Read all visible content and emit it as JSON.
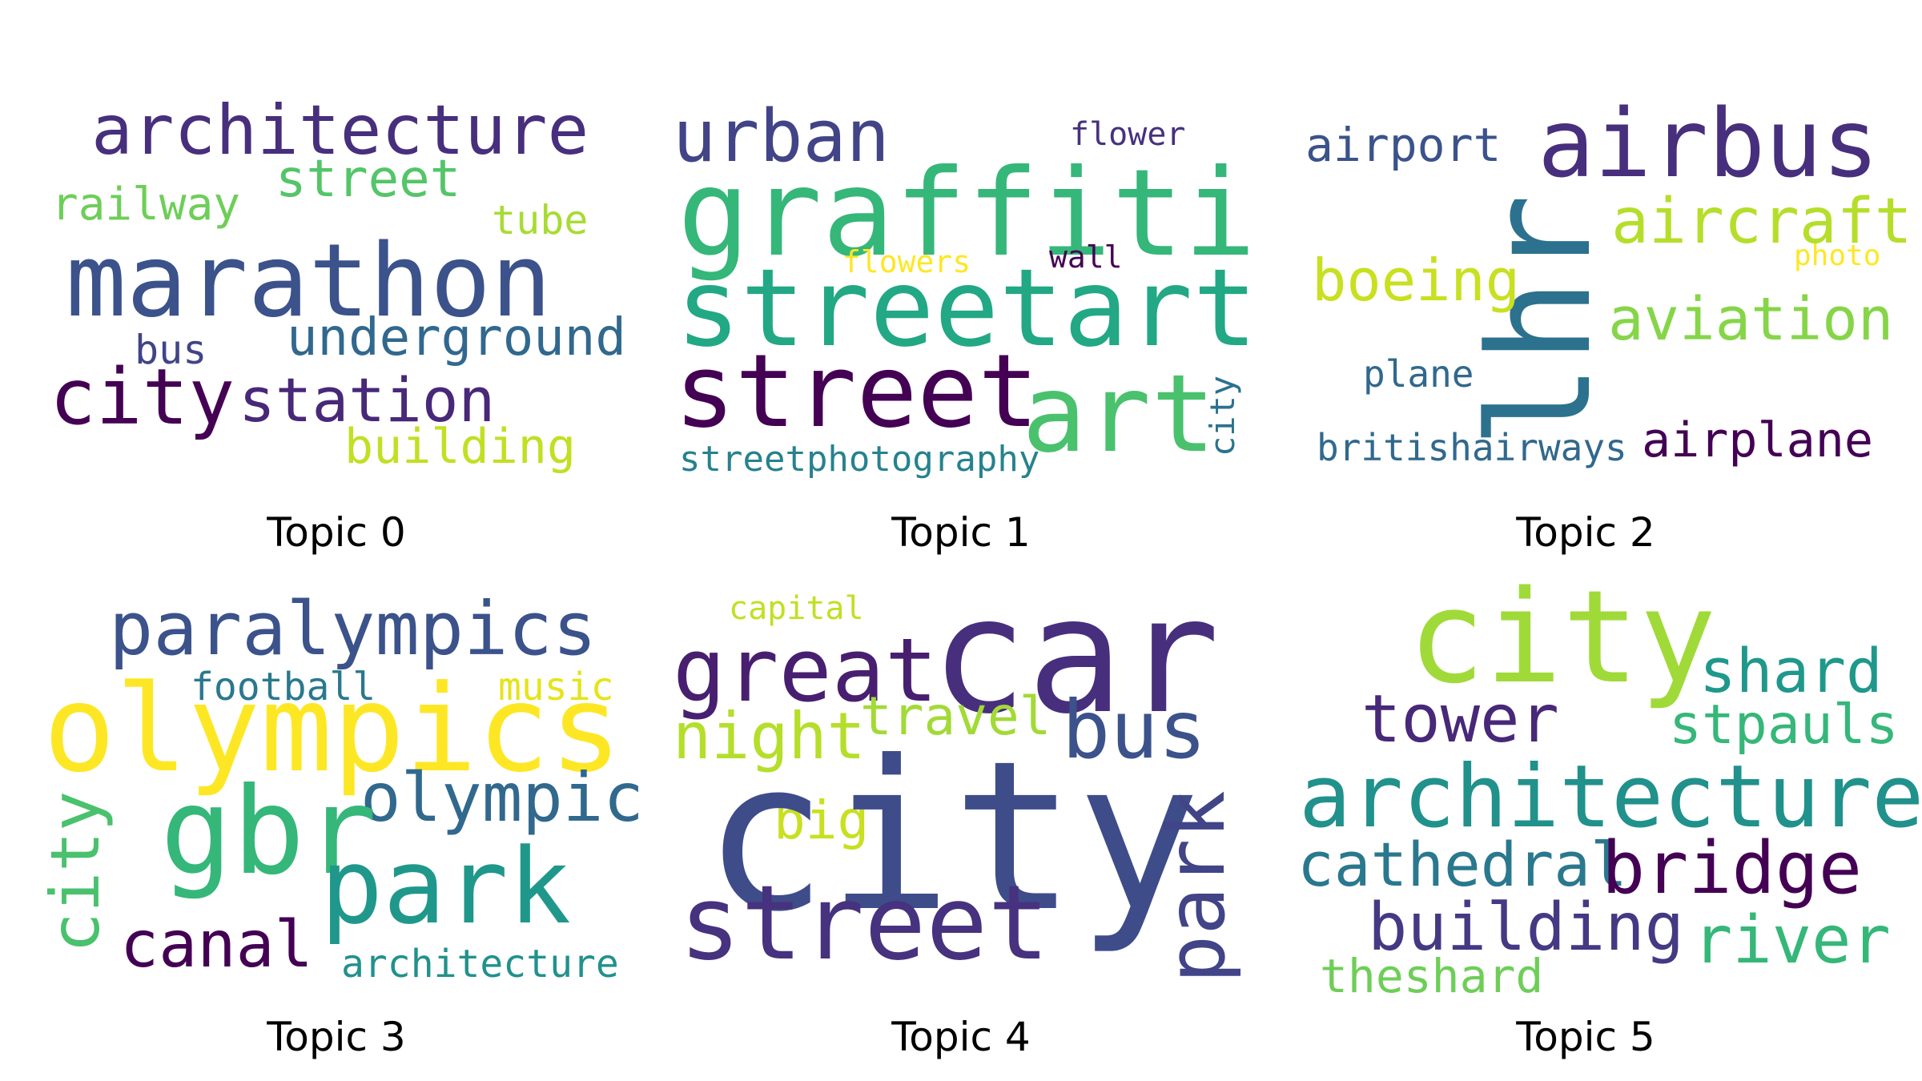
{
  "topics": [
    {
      "caption": "Topic 0",
      "words": [
        {
          "text": "architecture",
          "color": "#472f7d"
        },
        {
          "text": "street",
          "color": "#54c568"
        },
        {
          "text": "railway",
          "color": "#6ece58"
        },
        {
          "text": "tube",
          "color": "#a8db34"
        },
        {
          "text": "marathon",
          "color": "#3b528b"
        },
        {
          "text": "underground",
          "color": "#31688e"
        },
        {
          "text": "bus",
          "color": "#414487"
        },
        {
          "text": "city",
          "color": "#440154"
        },
        {
          "text": "station",
          "color": "#482878"
        },
        {
          "text": "building",
          "color": "#c2df23"
        }
      ]
    },
    {
      "caption": "Topic 1",
      "words": [
        {
          "text": "urban",
          "color": "#414487"
        },
        {
          "text": "flower",
          "color": "#46327e"
        },
        {
          "text": "graffiti",
          "color": "#35b779"
        },
        {
          "text": "flowers",
          "color": "#fde725"
        },
        {
          "text": "wall",
          "color": "#440154"
        },
        {
          "text": "streetart",
          "color": "#22a884"
        },
        {
          "text": "street",
          "color": "#440154"
        },
        {
          "text": "art",
          "color": "#4ac16d"
        },
        {
          "text": "city",
          "color": "#2c728e"
        },
        {
          "text": "streetphotography",
          "color": "#26828e"
        }
      ]
    },
    {
      "caption": "Topic 2",
      "words": [
        {
          "text": "airport",
          "color": "#3b528b"
        },
        {
          "text": "airbus",
          "color": "#472f7d"
        },
        {
          "text": "lhr",
          "color": "#2c728e"
        },
        {
          "text": "aircraft",
          "color": "#b5de2b"
        },
        {
          "text": "photo",
          "color": "#fde725"
        },
        {
          "text": "boeing",
          "color": "#c8e020"
        },
        {
          "text": "aviation",
          "color": "#86d549"
        },
        {
          "text": "plane",
          "color": "#31688e"
        },
        {
          "text": "airplane",
          "color": "#440154"
        },
        {
          "text": "britishairways",
          "color": "#31688e"
        }
      ]
    },
    {
      "caption": "Topic 3",
      "words": [
        {
          "text": "paralympics",
          "color": "#3b528b"
        },
        {
          "text": "football",
          "color": "#2a788e"
        },
        {
          "text": "music",
          "color": "#e5e419"
        },
        {
          "text": "olympics",
          "color": "#fde725"
        },
        {
          "text": "olympic",
          "color": "#31688e"
        },
        {
          "text": "city",
          "color": "#4ac16d"
        },
        {
          "text": "gbr",
          "color": "#35b779"
        },
        {
          "text": "park",
          "color": "#1f988b"
        },
        {
          "text": "canal",
          "color": "#440154"
        },
        {
          "text": "architecture",
          "color": "#21918c"
        }
      ]
    },
    {
      "caption": "Topic 4",
      "words": [
        {
          "text": "capital",
          "color": "#c2df23"
        },
        {
          "text": "car",
          "color": "#472f7d"
        },
        {
          "text": "great",
          "color": "#481f70"
        },
        {
          "text": "night",
          "color": "#b5de2b"
        },
        {
          "text": "travel",
          "color": "#a2da37"
        },
        {
          "text": "bus",
          "color": "#3b528b"
        },
        {
          "text": "big",
          "color": "#c8e020"
        },
        {
          "text": "city",
          "color": "#3e4c8a"
        },
        {
          "text": "park",
          "color": "#414487"
        },
        {
          "text": "street",
          "color": "#46327e"
        }
      ]
    },
    {
      "caption": "Topic 5",
      "words": [
        {
          "text": "city",
          "color": "#a0da39"
        },
        {
          "text": "shard",
          "color": "#1f988b"
        },
        {
          "text": "tower",
          "color": "#482878"
        },
        {
          "text": "stpauls",
          "color": "#35b779"
        },
        {
          "text": "architecture",
          "color": "#21918c"
        },
        {
          "text": "cathedral",
          "color": "#2a788e"
        },
        {
          "text": "bridge",
          "color": "#440154"
        },
        {
          "text": "building",
          "color": "#443983"
        },
        {
          "text": "river",
          "color": "#35b779"
        },
        {
          "text": "theshard",
          "color": "#6ece58"
        }
      ]
    }
  ]
}
